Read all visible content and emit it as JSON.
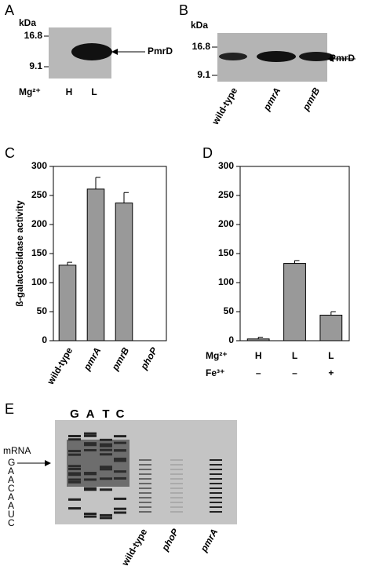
{
  "figure": {
    "panel_labels": [
      "A",
      "B",
      "C",
      "D",
      "E"
    ]
  },
  "blot_a": {
    "unit": "kDa",
    "markers": [
      "16.8",
      "9.1"
    ],
    "band": "PmrD",
    "condition": "Mg²⁺",
    "lanes": [
      "H",
      "L"
    ]
  },
  "blot_b": {
    "unit": "kDa",
    "markers": [
      "16.8",
      "9.1"
    ],
    "band": "PmrD",
    "lanes": [
      "wild-type",
      "pmrA",
      "pmrB"
    ]
  },
  "chart_data": [
    {
      "type": "bar",
      "ylabel": "ß-galactosidase activity",
      "categories": [
        "wild-type",
        "pmrA",
        "pmrB",
        "phoP"
      ],
      "values": [
        130,
        261,
        237,
        0
      ],
      "errors": [
        5,
        20,
        18,
        0
      ],
      "color": "#999999",
      "ylim": [
        0,
        300
      ],
      "yticks": [
        0,
        50,
        100,
        150,
        200,
        250,
        300
      ]
    },
    {
      "type": "bar",
      "categories": [
        "H",
        "L",
        "L"
      ],
      "row_labels": [
        "Mg²⁺",
        "Fe³⁺"
      ],
      "fe_levels": [
        "–",
        "–",
        "+"
      ],
      "values": [
        3,
        133,
        44
      ],
      "errors": [
        3,
        5,
        6
      ],
      "color": "#999999",
      "ylim": [
        0,
        300
      ],
      "yticks": [
        0,
        50,
        100,
        150,
        200,
        250,
        300
      ]
    }
  ],
  "gel_e": {
    "lanes_top": [
      "G",
      "A",
      "T",
      "C"
    ],
    "sequence_label": "mRNA",
    "sequence": [
      "G",
      "A",
      "A",
      "C",
      "A",
      "A",
      "U",
      "C"
    ],
    "lanes_bottom": [
      "wild-type",
      "phoP",
      "pmrA"
    ]
  }
}
